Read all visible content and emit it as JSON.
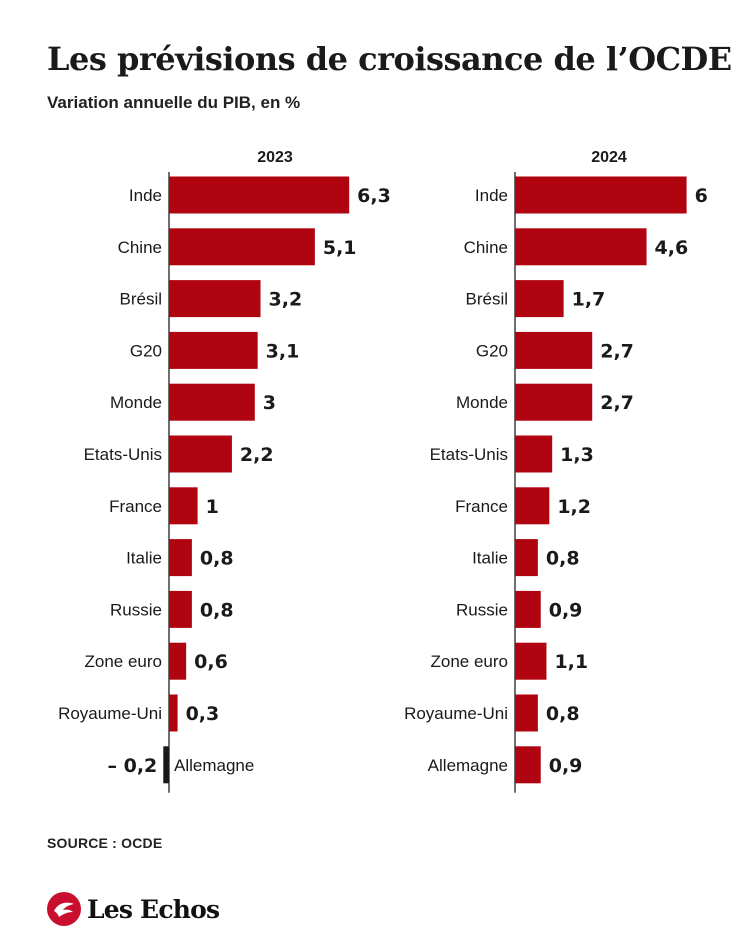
{
  "header": {
    "title": "Les prévisions de croissance de l’OCDE",
    "subtitle": "Variation annuelle du PIB, en %"
  },
  "footer": {
    "source": "SOURCE : OCDE",
    "brand": "Les Echos"
  },
  "colors": {
    "positive_bar": "#b00510",
    "negative_bar": "#1a1a1a",
    "axis": "#222222",
    "text": "#1a1a1a",
    "brand_red": "#c8102e"
  },
  "chart_data": [
    {
      "type": "bar",
      "orientation": "horizontal",
      "title": "2023",
      "categories": [
        "Inde",
        "Chine",
        "Brésil",
        "G20",
        "Monde",
        "Etats-Unis",
        "France",
        "Italie",
        "Russie",
        "Zone euro",
        "Royaume-Uni",
        "Allemagne"
      ],
      "values": [
        6.3,
        5.1,
        3.2,
        3.1,
        3.0,
        2.2,
        1.0,
        0.8,
        0.8,
        0.6,
        0.3,
        -0.2
      ],
      "value_labels": [
        "6,3",
        "5,1",
        "3,2",
        "3,1",
        "3",
        "2,2",
        "1",
        "0,8",
        "0,8",
        "0,6",
        "0,3",
        "– 0,2"
      ],
      "grid": false
    },
    {
      "type": "bar",
      "orientation": "horizontal",
      "title": "2024",
      "categories": [
        "Inde",
        "Chine",
        "Brésil",
        "G20",
        "Monde",
        "Etats-Unis",
        "France",
        "Italie",
        "Russie",
        "Zone euro",
        "Royaume-Uni",
        "Allemagne"
      ],
      "values": [
        6.0,
        4.6,
        1.7,
        2.7,
        2.7,
        1.3,
        1.2,
        0.8,
        0.9,
        1.1,
        0.8,
        0.9
      ],
      "value_labels": [
        "6",
        "4,6",
        "1,7",
        "2,7",
        "2,7",
        "1,3",
        "1,2",
        "0,8",
        "0,9",
        "1,1",
        "0,8",
        "0,9"
      ],
      "grid": false
    }
  ]
}
